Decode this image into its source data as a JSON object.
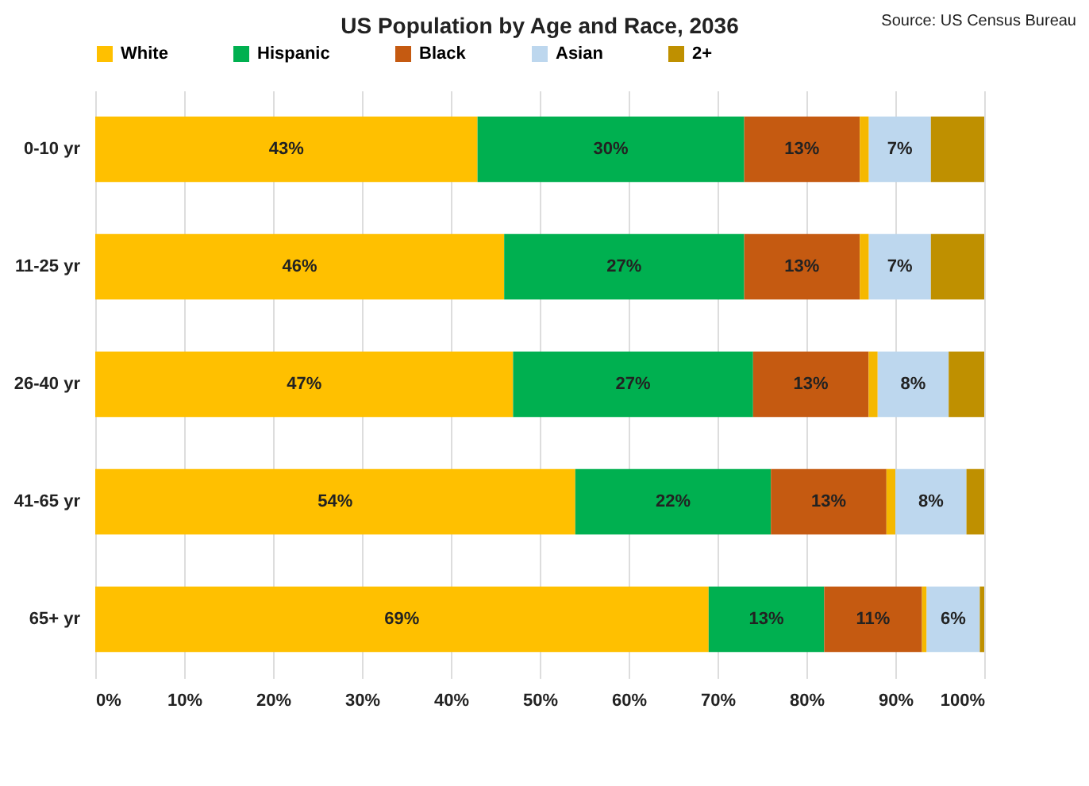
{
  "chart_data": {
    "type": "bar",
    "orientation": "horizontal",
    "stacked": true,
    "title": "US Population by Age and Race, 2036",
    "annotations": [
      "Source: US Census Bureau"
    ],
    "categories": [
      "0-10 yr",
      "11-25 yr",
      "26-40 yr",
      "41-65 yr",
      "65+ yr"
    ],
    "series": [
      {
        "name": "White",
        "color": "#ffc000",
        "values": [
          43,
          46,
          47,
          54,
          69
        ],
        "value_labels": [
          "43%",
          "46%",
          "47%",
          "54%",
          "69%"
        ]
      },
      {
        "name": "Hispanic",
        "color": "#00b050",
        "values": [
          30,
          27,
          27,
          22,
          13
        ],
        "value_labels": [
          "30%",
          "27%",
          "27%",
          "22%",
          "13%"
        ]
      },
      {
        "name": "Black",
        "color": "#c55a11",
        "values": [
          13,
          13,
          13,
          13,
          11
        ],
        "value_labels": [
          "13%",
          "13%",
          "13%",
          "13%",
          "11%"
        ]
      },
      {
        "color": "#f5b800",
        "values": [
          1,
          1,
          1,
          1,
          0.5
        ]
      },
      {
        "name": "Asian",
        "color": "#bdd7ee",
        "values": [
          7,
          7,
          8,
          8,
          6
        ],
        "value_labels": [
          "7%",
          "7%",
          "8%",
          "8%",
          "6%"
        ]
      },
      {
        "name": "2+",
        "color": "#bf9000",
        "values": [
          6,
          6,
          4,
          2,
          0.5
        ]
      }
    ],
    "xlim": [
      0,
      100
    ],
    "xticks": [
      {
        "value": 0,
        "label": "0%"
      },
      {
        "value": 10,
        "label": "10%"
      },
      {
        "value": 20,
        "label": "20%"
      },
      {
        "value": 30,
        "label": "30%"
      },
      {
        "value": 40,
        "label": "40%"
      },
      {
        "value": 50,
        "label": "50%"
      },
      {
        "value": 60,
        "label": "60%"
      },
      {
        "value": 70,
        "label": "70%"
      },
      {
        "value": 80,
        "label": "80%"
      },
      {
        "value": 90,
        "label": "90%"
      },
      {
        "value": 100,
        "label": "100%"
      }
    ],
    "grid": "x",
    "legend": "top"
  }
}
